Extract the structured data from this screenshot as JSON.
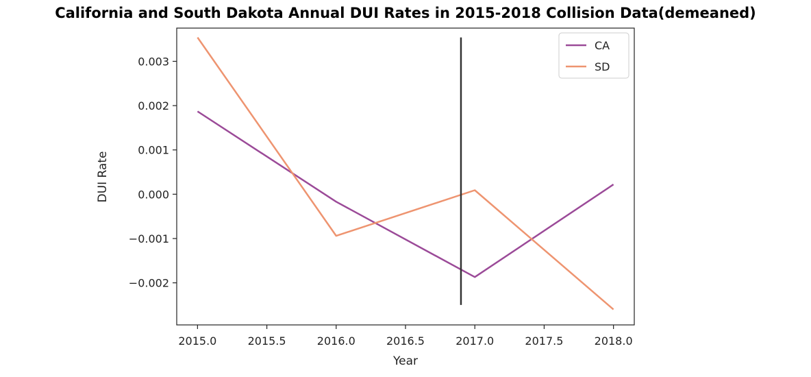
{
  "chart_data": {
    "type": "line",
    "title": "California and South Dakota Annual DUI Rates in 2015-2018 Collision Data(demeaned)",
    "xlabel": "Year",
    "ylabel": "DUI Rate",
    "xlim": [
      2014.85,
      2018.15
    ],
    "ylim": [
      -0.00295,
      0.00375
    ],
    "xticks": [
      2015.0,
      2015.5,
      2016.0,
      2016.5,
      2017.0,
      2017.5,
      2018.0
    ],
    "xtick_labels": [
      "2015.0",
      "2015.5",
      "2016.0",
      "2016.5",
      "2017.0",
      "2017.5",
      "2018.0"
    ],
    "yticks": [
      -0.002,
      -0.001,
      0.0,
      0.001,
      0.002,
      0.003
    ],
    "ytick_labels": [
      "−0.002",
      "−0.001",
      "0.000",
      "0.001",
      "0.002",
      "0.003"
    ],
    "grid": false,
    "legend_position": "top-right",
    "x": [
      2015,
      2016,
      2017,
      2018
    ],
    "series": [
      {
        "name": "CA",
        "color": "#9b4a98",
        "values": [
          0.00187,
          -0.00017,
          -0.00187,
          0.00022
        ]
      },
      {
        "name": "SD",
        "color": "#ee9470",
        "values": [
          0.00354,
          -0.00094,
          9e-05,
          -0.0026
        ]
      }
    ],
    "vline": {
      "x": 2016.9,
      "ymin": -0.0025,
      "ymax": 0.00354,
      "color": "#333333"
    }
  }
}
